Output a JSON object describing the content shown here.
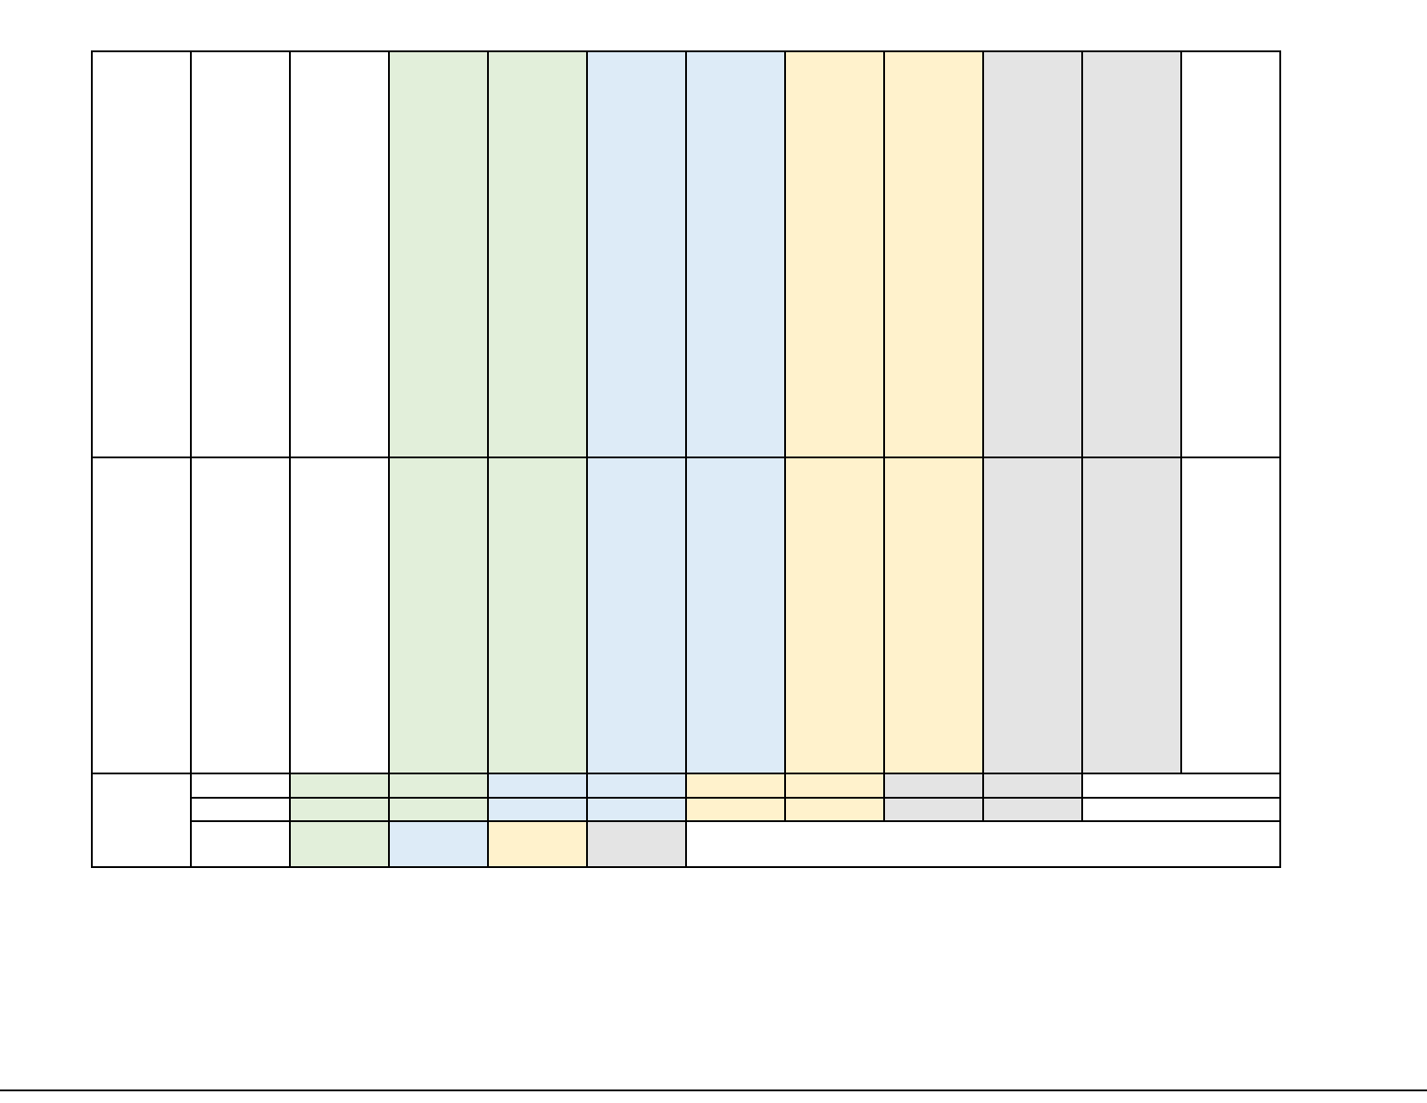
{
  "colors": {
    "white": "#ffffff",
    "green": "#e2efda",
    "blue": "#ddebf7",
    "yellow": "#fff2cc",
    "gray": "#e4e4e4",
    "border": "#000000"
  }
}
